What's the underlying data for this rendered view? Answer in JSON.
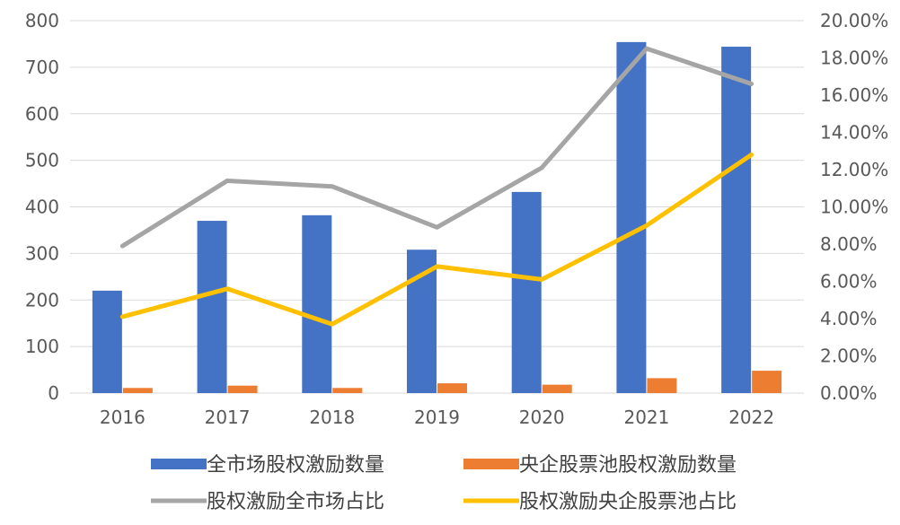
{
  "chart_data": {
    "type": "bar",
    "categories": [
      "2016",
      "2017",
      "2018",
      "2019",
      "2020",
      "2021",
      "2022"
    ],
    "series": [
      {
        "name": "全市场股权激励数量",
        "kind": "bar",
        "axis": "left",
        "color": "#4472C4",
        "values": [
          220,
          370,
          382,
          308,
          432,
          754,
          744
        ]
      },
      {
        "name": "央企股票池股权激励数量",
        "kind": "bar",
        "axis": "left",
        "color": "#ED7D31",
        "values": [
          11,
          16,
          11,
          21,
          18,
          32,
          48
        ]
      },
      {
        "name": "股权激励全市场占比",
        "kind": "line",
        "axis": "right",
        "color": "#A5A5A5",
        "values": [
          7.9,
          11.4,
          11.1,
          8.9,
          12.1,
          18.5,
          16.6
        ]
      },
      {
        "name": "股权激励央企股票池占比",
        "kind": "line",
        "axis": "right",
        "color": "#FFC000",
        "values": [
          4.1,
          5.6,
          3.7,
          6.8,
          6.1,
          9.0,
          12.8
        ]
      }
    ],
    "left_axis": {
      "min": 0,
      "max": 800,
      "ticks": [
        "0",
        "100",
        "200",
        "300",
        "400",
        "500",
        "600",
        "700",
        "800"
      ]
    },
    "right_axis": {
      "min": 0,
      "max": 20,
      "ticks": [
        "0.00%",
        "2.00%",
        "4.00%",
        "6.00%",
        "8.00%",
        "10.00%",
        "12.00%",
        "14.00%",
        "16.00%",
        "18.00%",
        "20.00%"
      ]
    },
    "grid": true,
    "legend_position": "bottom"
  }
}
